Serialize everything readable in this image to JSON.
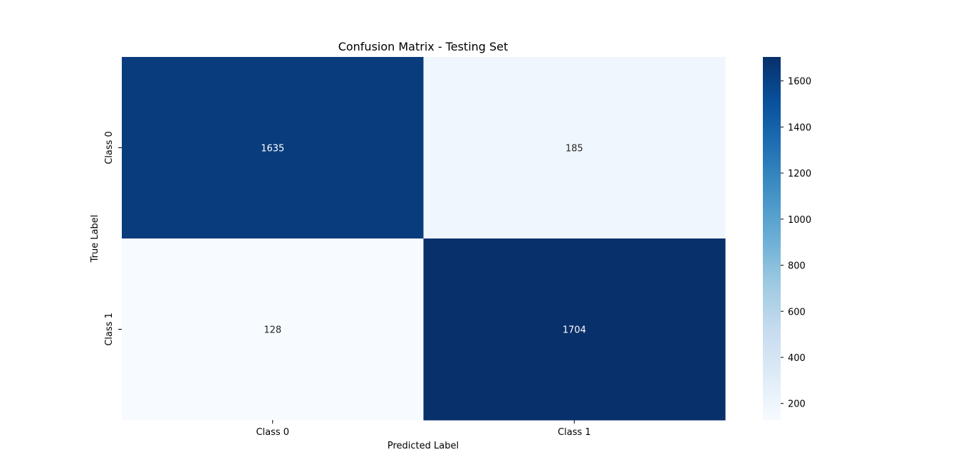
{
  "chart_data": {
    "type": "heatmap",
    "title": "Confusion Matrix - Testing Set",
    "xlabel": "Predicted Label",
    "ylabel": "True Label",
    "x_categories": [
      "Class 0",
      "Class 1"
    ],
    "y_categories": [
      "Class 0",
      "Class 1"
    ],
    "values": [
      [
        1635,
        185
      ],
      [
        128,
        1704
      ]
    ],
    "colormap": "Blues",
    "color_range": [
      128,
      1704
    ],
    "colorbar_ticks": [
      200,
      400,
      600,
      800,
      1000,
      1200,
      1400,
      1600
    ],
    "grid": false,
    "annotations": true
  }
}
